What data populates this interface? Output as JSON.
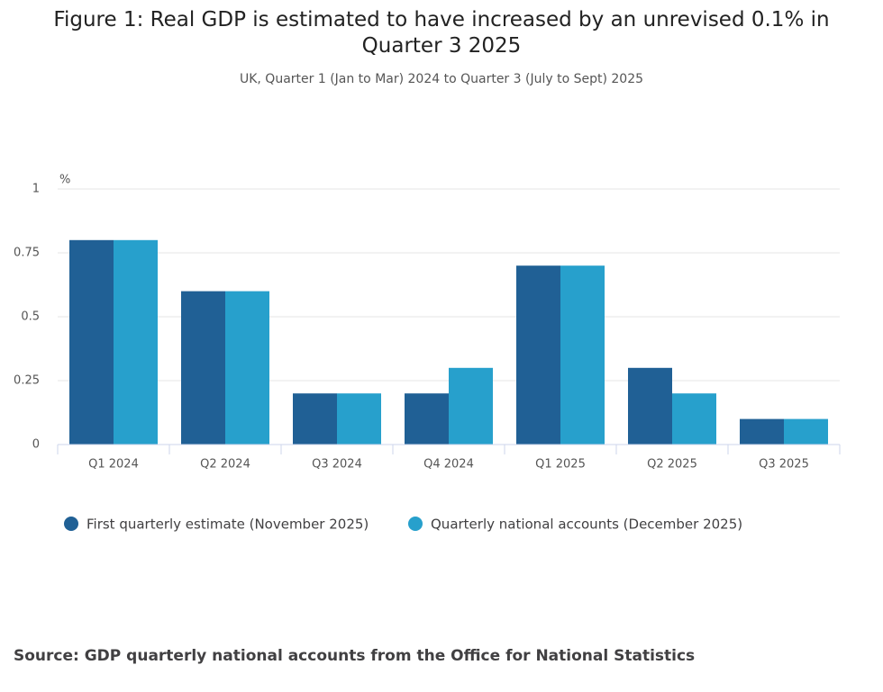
{
  "chart_data": {
    "type": "bar",
    "title": "Figure 1: Real GDP is estimated to have increased by an unrevised 0.1% in Quarter 3 2025",
    "subtitle": "UK, Quarter 1 (Jan to Mar) 2024 to Quarter 3 (July to Sept) 2025",
    "y_axis_label": "%",
    "categories": [
      "Q1 2024",
      "Q2 2024",
      "Q3 2024",
      "Q4 2024",
      "Q1 2025",
      "Q2 2025",
      "Q3 2025"
    ],
    "series": [
      {
        "name": "First quarterly estimate (November 2025)",
        "color": "#206095",
        "values": [
          0.8,
          0.6,
          0.2,
          0.2,
          0.7,
          0.3,
          0.1
        ]
      },
      {
        "name": "Quarterly national accounts (December 2025)",
        "color": "#27a0cc",
        "values": [
          0.8,
          0.6,
          0.2,
          0.3,
          0.7,
          0.2,
          0.1
        ]
      }
    ],
    "ylim": [
      0,
      1
    ],
    "yticks": [
      0,
      0.25,
      0.5,
      0.75,
      1
    ],
    "grid": true,
    "source": "Source: GDP quarterly national accounts from the Office for National Statistics"
  }
}
